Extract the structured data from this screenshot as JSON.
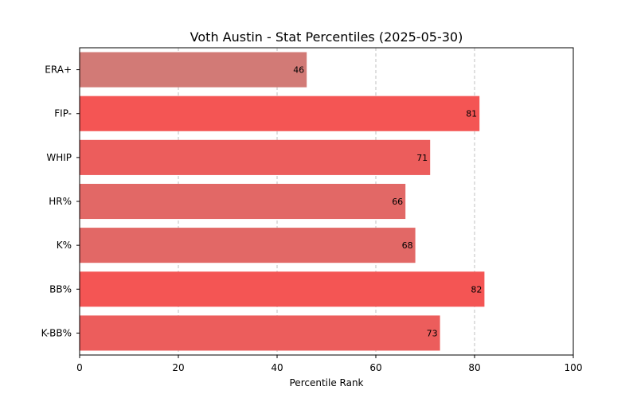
{
  "chart_data": {
    "type": "bar",
    "orientation": "horizontal",
    "title": "Voth Austin - Stat Percentiles (2025-05-30)",
    "xlabel": "Percentile Rank",
    "ylabel": "",
    "xlim": [
      0,
      100
    ],
    "xticks": [
      0,
      20,
      40,
      60,
      80,
      100
    ],
    "grid": "x-dashed",
    "categories": [
      "ERA+",
      "FIP-",
      "WHIP",
      "HR%",
      "K%",
      "BB%",
      "K-BB%"
    ],
    "values": [
      46,
      81,
      71,
      66,
      68,
      82,
      73
    ],
    "colors": [
      "#d27a76",
      "#f45554",
      "#ec5d5c",
      "#e26866",
      "#e26866",
      "#f45554",
      "#ec5d5c"
    ]
  }
}
